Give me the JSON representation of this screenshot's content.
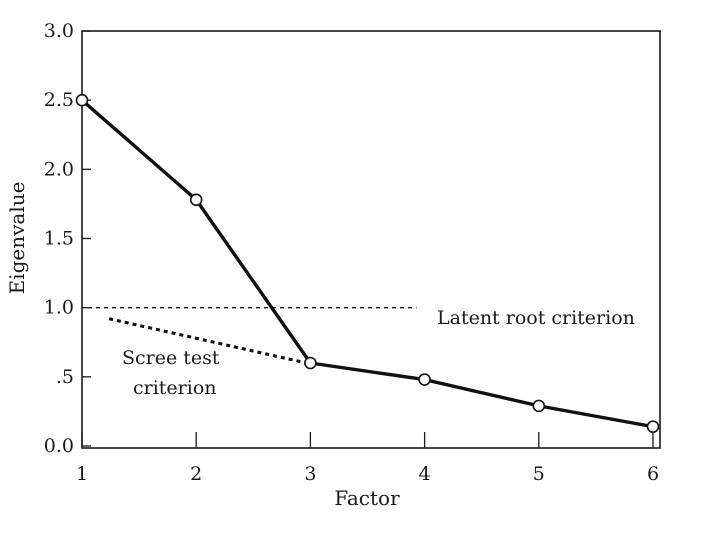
{
  "chart_data": {
    "type": "line",
    "title": "",
    "xlabel": "Factor",
    "ylabel": "Eigenvalue",
    "x": [
      1,
      2,
      3,
      4,
      5,
      6
    ],
    "x_tick_labels": [
      "1",
      "2",
      "3",
      "4",
      "5",
      "6"
    ],
    "y_tick_values": [
      0,
      0.5,
      1.0,
      1.5,
      2.0,
      2.5,
      3.0
    ],
    "y_tick_labels": [
      "0.0",
      ".5",
      "1.0",
      "1.5",
      "2.0",
      "2.5",
      "3.0"
    ],
    "xlim": [
      1,
      6
    ],
    "ylim": [
      0,
      3.0
    ],
    "grid": false,
    "series": [
      {
        "name": "",
        "values": [
          2.5,
          1.78,
          0.6,
          0.48,
          0.29,
          0.14
        ]
      }
    ],
    "reference_lines": [
      {
        "label": "Latent root criterion",
        "y": 1.0,
        "x_range": [
          1,
          4
        ],
        "style": "dashed"
      },
      {
        "label_lines": [
          "Scree test",
          "criterion"
        ],
        "from": [
          1.5,
          0.92
        ],
        "to": [
          3,
          0.6
        ],
        "style": "dotted-bold"
      }
    ],
    "colors": {
      "line": "#111111",
      "marker_fill": "#ffffff",
      "text": "#1a1a1a"
    }
  }
}
